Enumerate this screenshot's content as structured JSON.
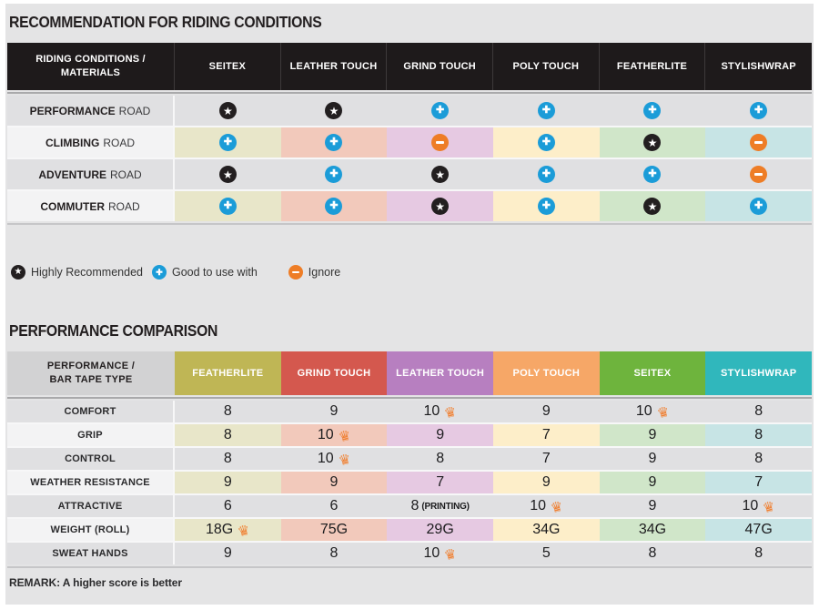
{
  "colors": {
    "page_bg": "#e4e4e5",
    "header_black": "#1e1a1b",
    "plus_blue": "#1b9cd8",
    "star_black": "#231f20",
    "minus_orange": "#ee7d26",
    "crown_orange": "#f08032"
  },
  "chart_data": [
    {
      "type": "table",
      "title": "RECOMMENDATION FOR RIDING CONDITIONS",
      "corner_header": "RIDING CONDITIONS /\nMATERIALS",
      "columns": [
        "SEITEX",
        "LEATHER TOUCH",
        "GRIND TOUCH",
        "POLY TOUCH",
        "FEATHERLITE",
        "STYLISHWRAP"
      ],
      "rows": [
        {
          "condition_bold": "PERFORMANCE",
          "condition_rest": "ROAD",
          "ratings": [
            "star",
            "star",
            "plus",
            "plus",
            "plus",
            "plus"
          ]
        },
        {
          "condition_bold": "CLIMBING",
          "condition_rest": "ROAD",
          "ratings": [
            "plus",
            "plus",
            "minus",
            "plus",
            "star",
            "minus"
          ]
        },
        {
          "condition_bold": "ADVENTURE",
          "condition_rest": "ROAD",
          "ratings": [
            "star",
            "plus",
            "star",
            "plus",
            "plus",
            "minus"
          ]
        },
        {
          "condition_bold": "COMMUTER",
          "condition_rest": "ROAD",
          "ratings": [
            "plus",
            "plus",
            "star",
            "plus",
            "star",
            "plus"
          ]
        }
      ],
      "legend": [
        {
          "icon": "star",
          "label": "Highly Recommended"
        },
        {
          "icon": "plus",
          "label": "Good to use with"
        },
        {
          "icon": "minus",
          "label": "Ignore"
        }
      ]
    },
    {
      "type": "table",
      "title": "PERFORMANCE COMPARISON",
      "corner_header": "PERFORMANCE /\nBAR TAPE TYPE",
      "columns": [
        {
          "label": "FEATHERLITE",
          "color": "#bfb655"
        },
        {
          "label": "GRIND TOUCH",
          "color": "#d4584e"
        },
        {
          "label": "LEATHER TOUCH",
          "color": "#b77fc0"
        },
        {
          "label": "POLY TOUCH",
          "color": "#f6a767"
        },
        {
          "label": "SEITEX",
          "color": "#6eb43d"
        },
        {
          "label": "STYLISHWRAP",
          "color": "#30b7bc"
        }
      ],
      "rows": [
        {
          "metric": "COMFORT",
          "values": [
            {
              "value": "8"
            },
            {
              "value": "9"
            },
            {
              "value": "10",
              "crown": true
            },
            {
              "value": "9"
            },
            {
              "value": "10",
              "crown": true
            },
            {
              "value": "8"
            }
          ]
        },
        {
          "metric": "GRIP",
          "values": [
            {
              "value": "8"
            },
            {
              "value": "10",
              "crown": true
            },
            {
              "value": "9"
            },
            {
              "value": "7"
            },
            {
              "value": "9"
            },
            {
              "value": "8"
            }
          ]
        },
        {
          "metric": "CONTROL",
          "values": [
            {
              "value": "8"
            },
            {
              "value": "10",
              "crown": true
            },
            {
              "value": "8"
            },
            {
              "value": "7"
            },
            {
              "value": "9"
            },
            {
              "value": "8"
            }
          ]
        },
        {
          "metric": "WEATHER RESISTANCE",
          "values": [
            {
              "value": "9"
            },
            {
              "value": "9"
            },
            {
              "value": "7"
            },
            {
              "value": "9"
            },
            {
              "value": "9"
            },
            {
              "value": "7"
            }
          ]
        },
        {
          "metric": "ATTRACTIVE",
          "values": [
            {
              "value": "6"
            },
            {
              "value": "6"
            },
            {
              "value": "8",
              "suffix": "(PRINTING)"
            },
            {
              "value": "10",
              "crown": true
            },
            {
              "value": "9"
            },
            {
              "value": "10",
              "crown": true
            }
          ]
        },
        {
          "metric": "WEIGHT (ROLL)",
          "values": [
            {
              "value": "18G",
              "crown": true
            },
            {
              "value": "75G"
            },
            {
              "value": "29G"
            },
            {
              "value": "34G"
            },
            {
              "value": "34G"
            },
            {
              "value": "47G"
            }
          ]
        },
        {
          "metric": "SWEAT HANDS",
          "values": [
            {
              "value": "9"
            },
            {
              "value": "8"
            },
            {
              "value": "10",
              "crown": true
            },
            {
              "value": "5"
            },
            {
              "value": "8"
            },
            {
              "value": "8"
            }
          ]
        }
      ],
      "remark": "REMARK: A higher score is better"
    }
  ]
}
